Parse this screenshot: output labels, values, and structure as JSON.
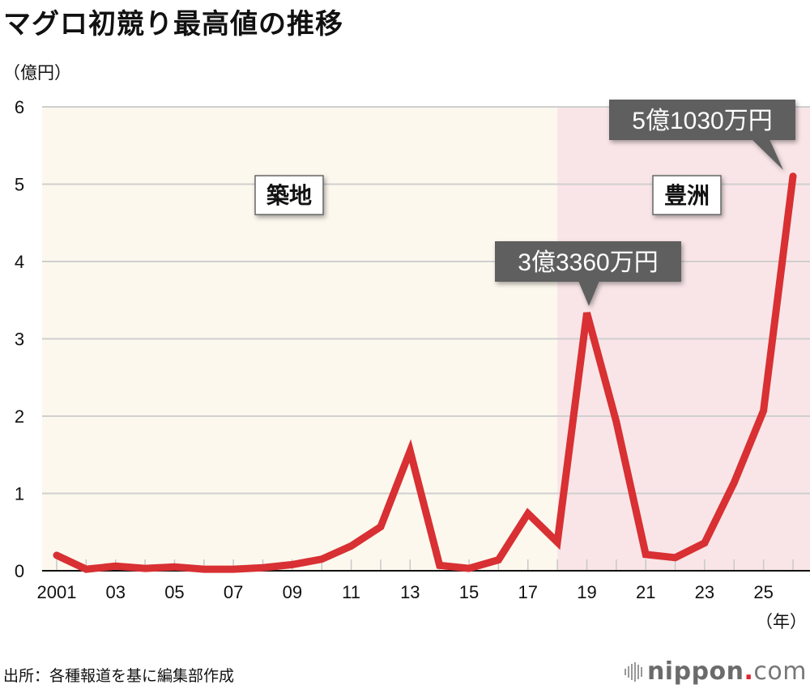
{
  "title": "マグロ初競り最高値の推移",
  "unit_label": "（億円）",
  "x_unit_label": "（年）",
  "source": "出所：各種報道を基に編集部作成",
  "logo": {
    "name": "nippon",
    "dot": ".",
    "suffix": "com"
  },
  "colors": {
    "line": "#d83033",
    "tsukiji_bg": "#fdf8ee",
    "toyosu_bg": "#f9e5e7",
    "gridline": "#cfcfcf",
    "callout_bg": "#5e5e5e",
    "callout_text": "#ffffff"
  },
  "regions": [
    {
      "name": "tsukiji",
      "label": "築地",
      "from": 2001,
      "to": 2018
    },
    {
      "name": "toyosu",
      "label": "豊洲",
      "from": 2018,
      "to": 2026
    }
  ],
  "callouts": [
    {
      "year": 2019,
      "label": "3億3360万円"
    },
    {
      "year": 2026,
      "label": "5億1030万円"
    }
  ],
  "chart_data": {
    "type": "line",
    "title": "マグロ初競り最高値の推移",
    "xlabel": "（年）",
    "ylabel": "（億円）",
    "ylim": [
      0,
      6
    ],
    "yticks": [
      0,
      1,
      2,
      3,
      4,
      5,
      6
    ],
    "xtick_labels": [
      "2001",
      "03",
      "05",
      "07",
      "09",
      "11",
      "13",
      "15",
      "17",
      "19",
      "21",
      "23",
      "25"
    ],
    "grid": true,
    "legend": null,
    "x": [
      2001,
      2002,
      2003,
      2004,
      2005,
      2006,
      2007,
      2008,
      2009,
      2010,
      2011,
      2012,
      2013,
      2014,
      2015,
      2016,
      2017,
      2018,
      2019,
      2020,
      2021,
      2022,
      2023,
      2024,
      2025,
      2026
    ],
    "series": [
      {
        "name": "初競り最高値（億円）",
        "values": [
          0.2,
          0.02,
          0.06,
          0.03,
          0.05,
          0.02,
          0.02,
          0.04,
          0.08,
          0.15,
          0.32,
          0.57,
          1.55,
          0.07,
          0.03,
          0.14,
          0.74,
          0.37,
          3.336,
          1.93,
          0.21,
          0.17,
          0.36,
          1.14,
          2.07,
          5.103
        ]
      }
    ],
    "annotations": [
      {
        "x": 2019,
        "text": "3億3360万円"
      },
      {
        "x": 2026,
        "text": "5億1030万円"
      },
      {
        "text": "築地",
        "region": [
          2001,
          2018
        ]
      },
      {
        "text": "豊洲",
        "region": [
          2018,
          2026
        ]
      }
    ]
  }
}
